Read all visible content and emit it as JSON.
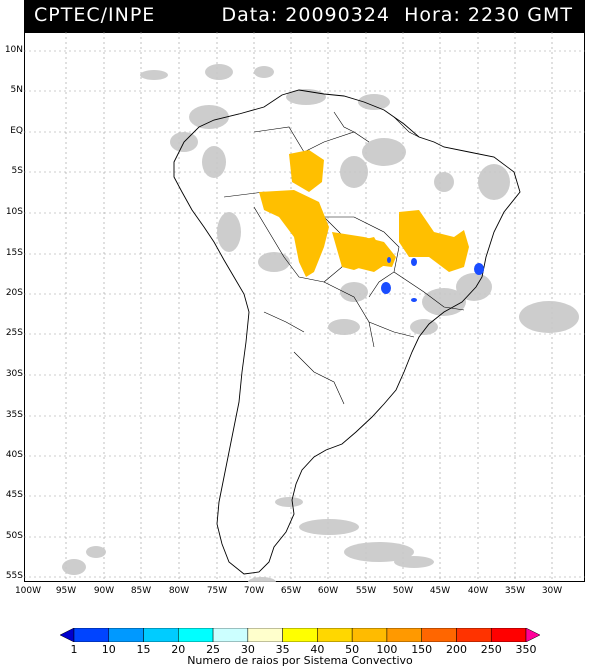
{
  "header": {
    "source": "CPTEC/INPE",
    "datetime": "Data: 20090324  Hora: 2230 GMT"
  },
  "axes": {
    "lat_labels": [
      "10N",
      "5N",
      "EQ",
      "5S",
      "10S",
      "15S",
      "20S",
      "25S",
      "30S",
      "35S",
      "40S",
      "45S",
      "50S",
      "55S"
    ],
    "lon_labels": [
      "100W",
      "95W",
      "90W",
      "85W",
      "80W",
      "75W",
      "70W",
      "65W",
      "60W",
      "55W",
      "50W",
      "45W",
      "40W",
      "35W",
      "30W"
    ]
  },
  "legend": {
    "ticks": [
      "1",
      "10",
      "15",
      "20",
      "25",
      "30",
      "35",
      "40",
      "50",
      "100",
      "150",
      "200",
      "250",
      "350"
    ],
    "caption": "Numero de raios por Sistema Convectivo",
    "colors": [
      "#0000cc",
      "#0044ff",
      "#0099ff",
      "#00ccff",
      "#00ffff",
      "#ccffff",
      "#ffffcc",
      "#ffff00",
      "#ffd700",
      "#ffbb00",
      "#ff9900",
      "#ff6600",
      "#ff3300",
      "#ff0000",
      "#ff0099"
    ]
  },
  "colors": {
    "lightning_yellow": "#ffbf00",
    "lightning_blue": "#0044ff",
    "cloud_gray": "#c8c8c8"
  }
}
